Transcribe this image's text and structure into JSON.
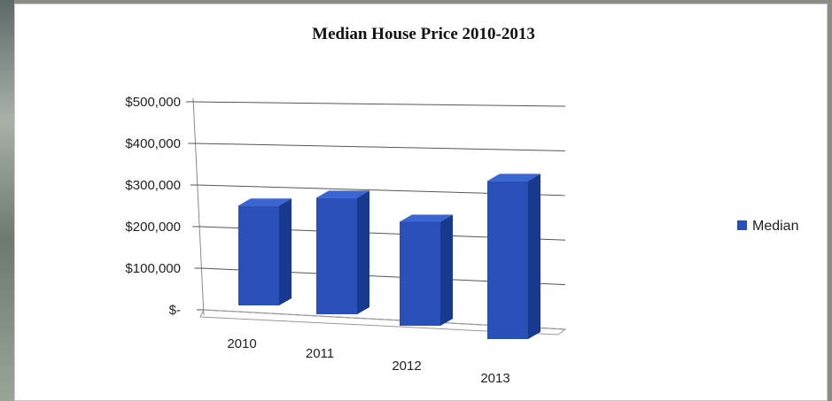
{
  "chart_data": {
    "type": "bar",
    "title": "Median House Price 2010-2013",
    "categories": [
      "2010",
      "2011",
      "2012",
      "2013"
    ],
    "series": [
      {
        "name": "Median",
        "values": [
          240000,
          280000,
          250000,
          380000
        ],
        "color": "#2850b8"
      }
    ],
    "y_ticks": [
      "$-",
      "$100,000",
      "$200,000",
      "$300,000",
      "$400,000",
      "$500,000"
    ],
    "ylim": [
      0,
      500000
    ],
    "grid": true,
    "legend_position": "right",
    "style": "3d-column"
  }
}
